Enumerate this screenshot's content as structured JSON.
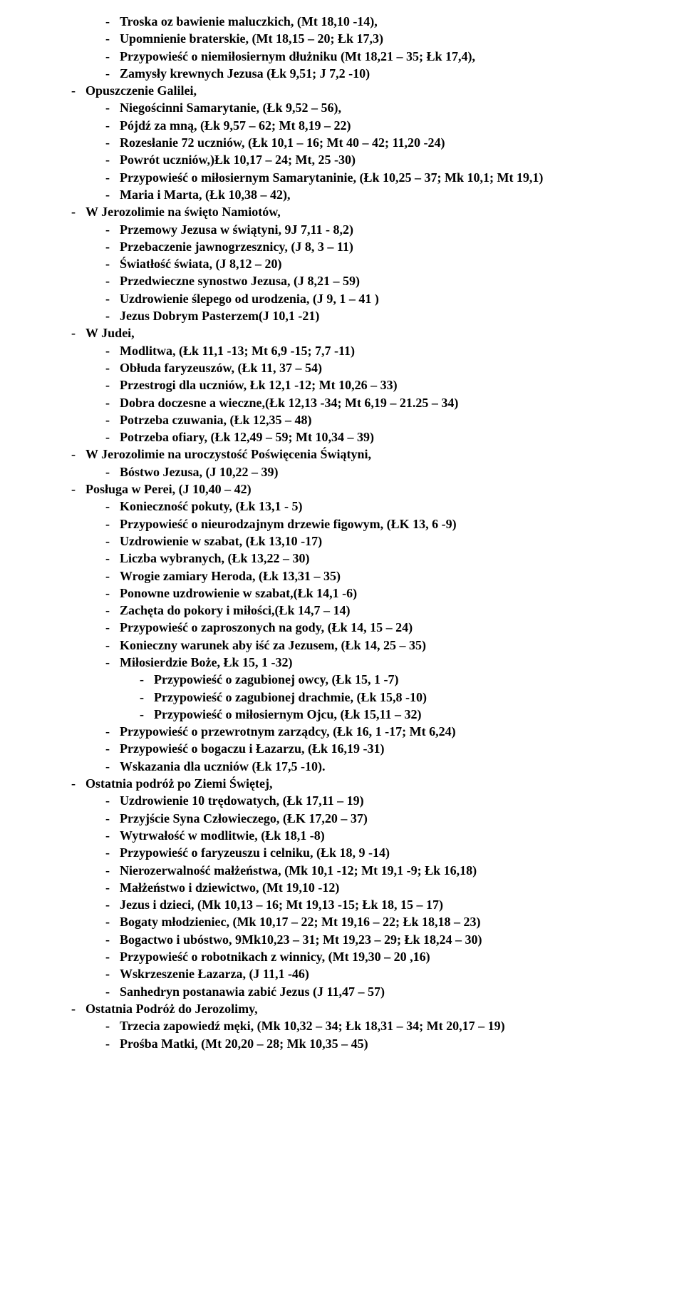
{
  "items": [
    {
      "level": 2,
      "text": "Troska oz bawienie maluczkich, (Mt 18,10 -14),"
    },
    {
      "level": 2,
      "text": "Upomnienie braterskie, (Mt 18,15 – 20; Łk 17,3)"
    },
    {
      "level": 2,
      "text": "Przypowieść o niemiłosiernym dłużniku (Mt 18,21 – 35; Łk 17,4),"
    },
    {
      "level": 2,
      "text": "Zamysły krewnych Jezusa (Łk 9,51; J 7,2 -10)"
    },
    {
      "level": 1,
      "text": "Opuszczenie Galilei,"
    },
    {
      "level": 2,
      "text": "Niegościnni Samarytanie, (Łk 9,52 – 56),"
    },
    {
      "level": 2,
      "text": "Pójdź za mną, (Łk 9,57 – 62; Mt 8,19 – 22)"
    },
    {
      "level": 2,
      "text": "Rozesłanie 72 uczniów, (Łk 10,1 – 16; Mt 40 – 42; 11,20 -24)"
    },
    {
      "level": 2,
      "text": "Powrót uczniów,)Łk 10,17 – 24; Mt, 25 -30)"
    },
    {
      "level": 2,
      "text": "Przypowieść o miłosiernym Samarytaninie, (Łk 10,25 – 37; Mk 10,1; Mt 19,1)"
    },
    {
      "level": 2,
      "text": "Maria i Marta, (Łk 10,38 – 42),"
    },
    {
      "level": 1,
      "text": "W Jerozolimie na święto Namiotów,"
    },
    {
      "level": 2,
      "text": "Przemowy Jezusa w świątyni, 9J 7,11  - 8,2)"
    },
    {
      "level": 2,
      "text": "Przebaczenie jawnogrzesznicy, (J 8, 3 – 11)"
    },
    {
      "level": 2,
      "text": "Światłość świata, (J 8,12 – 20)"
    },
    {
      "level": 2,
      "text": "Przedwieczne synostwo Jezusa, (J 8,21 – 59)"
    },
    {
      "level": 2,
      "text": "Uzdrowienie ślepego od urodzenia, (J 9, 1 – 41 )"
    },
    {
      "level": 2,
      "text": "Jezus Dobrym Pasterzem(J 10,1 -21)"
    },
    {
      "level": 1,
      "text": "W Judei,"
    },
    {
      "level": 2,
      "text": "Modlitwa, (Łk 11,1 -13; Mt 6,9 -15; 7,7 -11)"
    },
    {
      "level": 2,
      "text": "Obłuda faryzeuszów, (Łk 11, 37 – 54)"
    },
    {
      "level": 2,
      "text": "Przestrogi dla uczniów, Łk 12,1 -12; Mt 10,26 – 33)"
    },
    {
      "level": 2,
      "text": "Dobra doczesne a wieczne,(Łk 12,13 -34; Mt 6,19 – 21.25 – 34)"
    },
    {
      "level": 2,
      "text": "Potrzeba czuwania, (Łk 12,35 – 48)"
    },
    {
      "level": 2,
      "text": "Potrzeba ofiary, (Łk 12,49 – 59; Mt 10,34 – 39)"
    },
    {
      "level": 1,
      "text": "W Jerozolimie na uroczystość Poświęcenia Świątyni,"
    },
    {
      "level": 2,
      "text": "Bóstwo Jezusa, (J 10,22 – 39)"
    },
    {
      "level": 1,
      "text": "Posługa w Perei, (J 10,40 – 42)"
    },
    {
      "level": 2,
      "text": "Konieczność pokuty, (Łk 13,1 - 5)"
    },
    {
      "level": 2,
      "text": "Przypowieść o nieurodzajnym drzewie figowym, (ŁK 13, 6 -9)"
    },
    {
      "level": 2,
      "text": "Uzdrowienie w szabat, (Łk 13,10 -17)"
    },
    {
      "level": 2,
      "text": "Liczba wybranych, (Łk 13,22 – 30)"
    },
    {
      "level": 2,
      "text": "Wrogie zamiary Heroda, (Łk 13,31 – 35)"
    },
    {
      "level": 2,
      "text": "Ponowne uzdrowienie w szabat,(Łk 14,1 -6)"
    },
    {
      "level": 2,
      "text": "Zachęta do pokory i miłości,(Łk 14,7 – 14)"
    },
    {
      "level": 2,
      "text": "Przypowieść o zaproszonych na gody, (Łk 14, 15 – 24)"
    },
    {
      "level": 2,
      "text": "Konieczny warunek aby iść za Jezusem, (Łk 14, 25 – 35)"
    },
    {
      "level": 2,
      "text": "Miłosierdzie Boże, Łk 15, 1 -32)"
    },
    {
      "level": 3,
      "text": "Przypowieść o zagubionej owcy, (Łk 15, 1 -7)"
    },
    {
      "level": 3,
      "text": "Przypowieść o zagubionej drachmie, (Łk 15,8 -10)"
    },
    {
      "level": 3,
      "text": "Przypowieść o miłosiernym Ojcu, (Łk 15,11 – 32)"
    },
    {
      "level": 2,
      "text": "Przypowieść o przewrotnym zarządcy, (Łk 16, 1 -17; Mt 6,24)"
    },
    {
      "level": 2,
      "text": "Przypowieść o bogaczu i Łazarzu, (Łk 16,19 -31)"
    },
    {
      "level": 2,
      "text": "Wskazania dla uczniów (Łk 17,5 -10)."
    },
    {
      "level": 1,
      "text": "Ostatnia podróż po Ziemi Świętej,"
    },
    {
      "level": 2,
      "text": "Uzdrowienie 10 trędowatych, (Łk 17,11 – 19)"
    },
    {
      "level": 2,
      "text": "Przyjście Syna Człowieczego, (ŁK 17,20 – 37)"
    },
    {
      "level": 2,
      "text": "Wytrwałość w modlitwie, (Łk 18,1 -8)"
    },
    {
      "level": 2,
      "text": "Przypowieść o faryzeuszu i celniku, (Łk 18, 9 -14)"
    },
    {
      "level": 2,
      "text": "Nierozerwalność małżeństwa, (Mk 10,1 -12; Mt 19,1 -9; Łk 16,18)"
    },
    {
      "level": 2,
      "text": "Małżeństwo i dziewictwo, (Mt 19,10 -12)"
    },
    {
      "level": 2,
      "text": "Jezus i dzieci, (Mk 10,13 – 16; Mt 19,13 -15; Łk 18, 15 – 17)"
    },
    {
      "level": 2,
      "text": "Bogaty młodzieniec, (Mk 10,17 – 22; Mt 19,16 – 22; Łk 18,18 – 23)"
    },
    {
      "level": 2,
      "text": "Bogactwo i ubóstwo, 9Mk10,23 – 31; Mt 19,23 – 29; Łk 18,24 – 30)"
    },
    {
      "level": 2,
      "text": "Przypowieść o robotnikach z winnicy, (Mt 19,30 – 20 ,16)"
    },
    {
      "level": 2,
      "text": "Wskrzeszenie Łazarza, (J 11,1 -46)"
    },
    {
      "level": 2,
      "text": "Sanhedryn postanawia zabić Jezus (J 11,47 – 57)"
    },
    {
      "level": 1,
      "text": "Ostatnia Podróż do Jerozolimy,"
    },
    {
      "level": 2,
      "text": "Trzecia zapowiedź męki, (Mk 10,32 – 34; Łk 18,31 – 34; Mt 20,17 – 19)"
    },
    {
      "level": 2,
      "text": "Prośba Matki, (Mt 20,20 – 28; Mk 10,35 – 45)"
    }
  ]
}
